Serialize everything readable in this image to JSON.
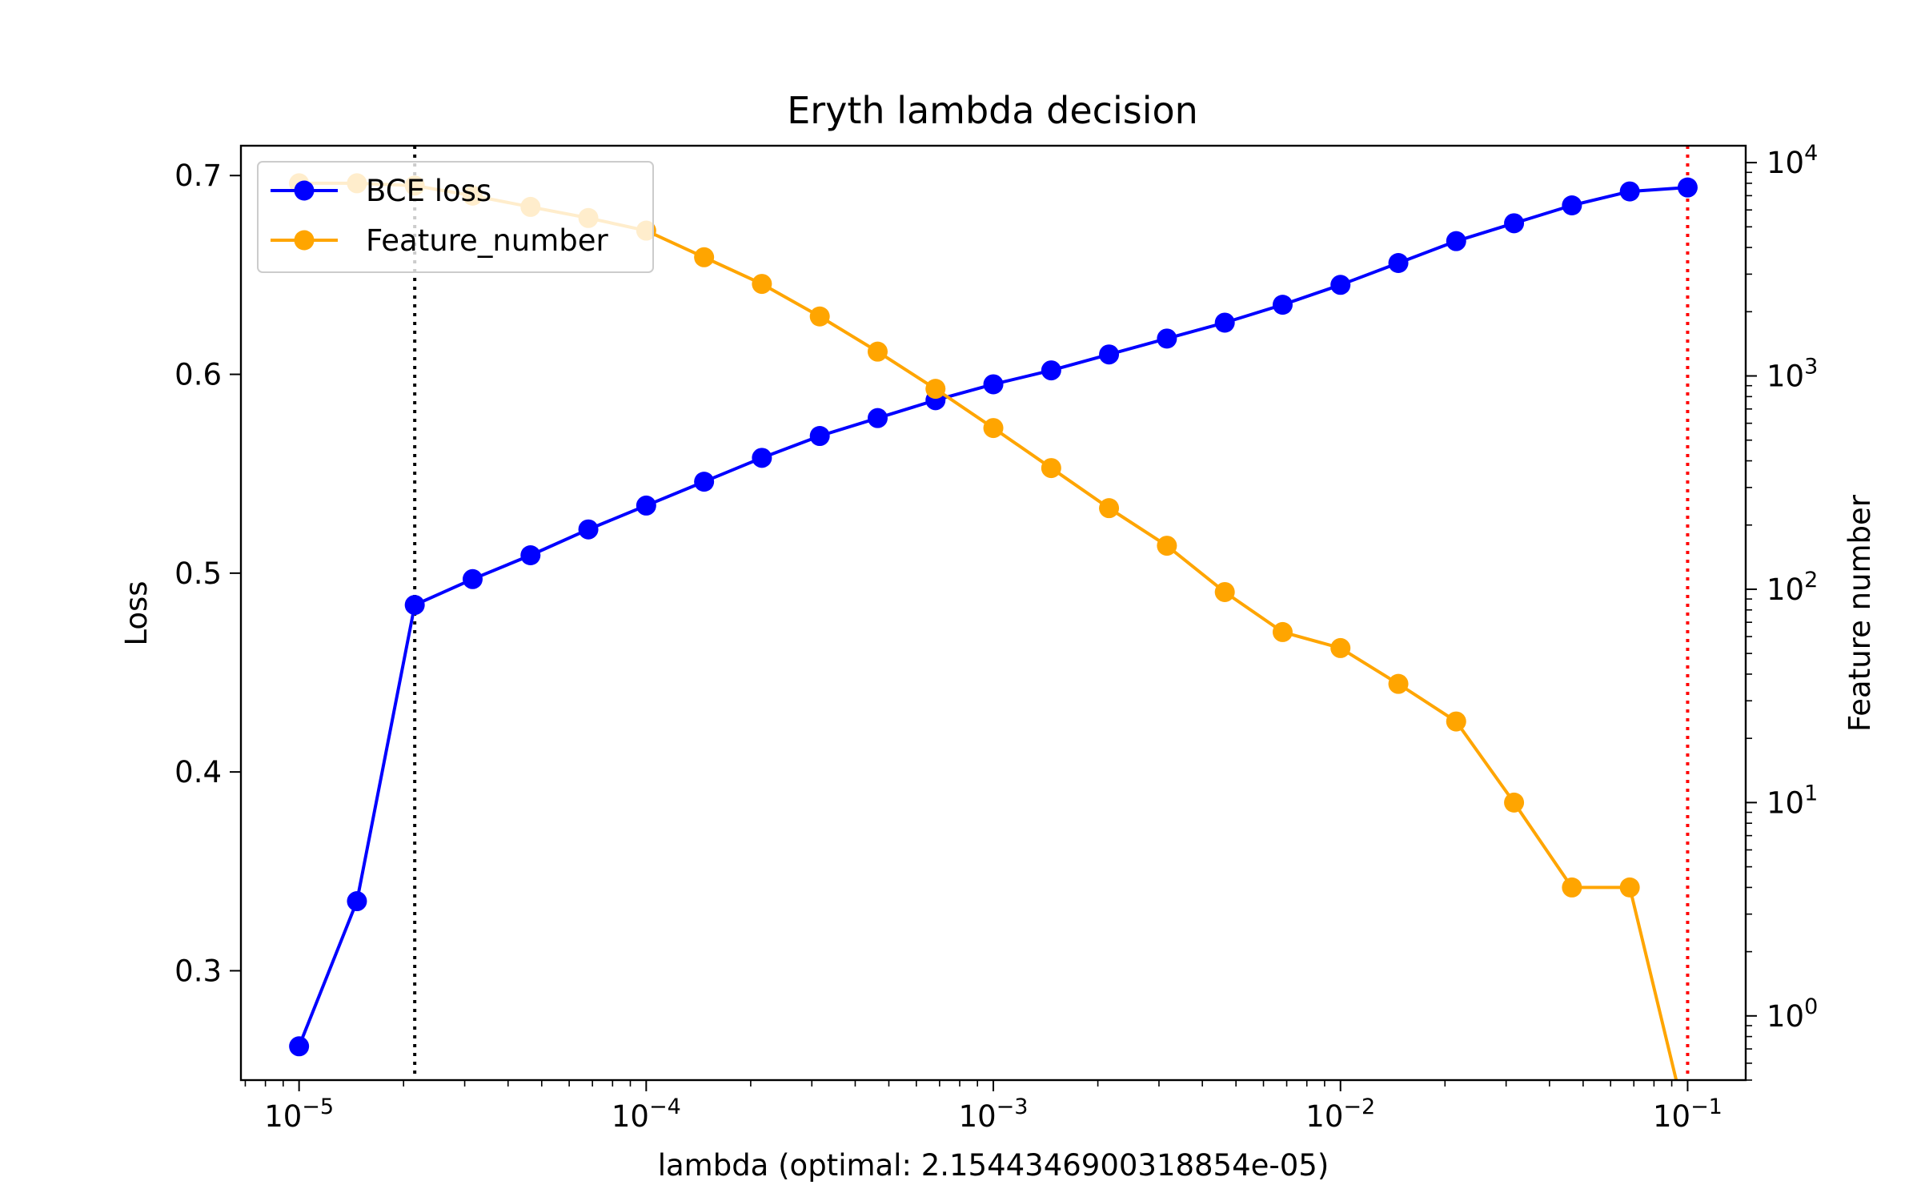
{
  "chart_data": {
    "type": "line",
    "title": "Eryth lambda decision",
    "xlabel": "lambda (optimal: 2.1544346900318854e-05)",
    "ylabel": "Loss",
    "y2label": "Feature number",
    "xscale": "log",
    "xlim": [
      6.8e-06,
      0.147
    ],
    "ylim": [
      0.245,
      0.715
    ],
    "y2scale": "log",
    "y2lim": [
      0.5,
      12000
    ],
    "x_ticks": [
      {
        "value": 1e-05,
        "base": "10",
        "exp": "−5"
      },
      {
        "value": 0.0001,
        "base": "10",
        "exp": "−4"
      },
      {
        "value": 0.001,
        "base": "10",
        "exp": "−3"
      },
      {
        "value": 0.01,
        "base": "10",
        "exp": "−2"
      },
      {
        "value": 0.1,
        "base": "10",
        "exp": "−1"
      }
    ],
    "y_ticks": [
      {
        "value": 0.3,
        "label": "0.3"
      },
      {
        "value": 0.4,
        "label": "0.4"
      },
      {
        "value": 0.5,
        "label": "0.5"
      },
      {
        "value": 0.6,
        "label": "0.6"
      },
      {
        "value": 0.7,
        "label": "0.7"
      }
    ],
    "y2_ticks": [
      {
        "value": 1,
        "base": "10",
        "exp": "0"
      },
      {
        "value": 10,
        "base": "10",
        "exp": "1"
      },
      {
        "value": 100,
        "base": "10",
        "exp": "2"
      },
      {
        "value": 1000,
        "base": "10",
        "exp": "3"
      },
      {
        "value": 10000,
        "base": "10",
        "exp": "4"
      }
    ],
    "x": [
      1e-05,
      1.468e-05,
      2.154e-05,
      3.162e-05,
      4.642e-05,
      6.813e-05,
      0.0001,
      0.0001468,
      0.0002154,
      0.0003162,
      0.0004642,
      0.0006813,
      0.001,
      0.001468,
      0.002154,
      0.003162,
      0.004642,
      0.006813,
      0.01,
      0.01468,
      0.02154,
      0.03162,
      0.04642,
      0.06813,
      0.1
    ],
    "series": [
      {
        "name": "BCE loss",
        "axis": "left",
        "color": "#0000ff",
        "values": [
          0.262,
          0.335,
          0.484,
          0.497,
          0.509,
          0.522,
          0.534,
          0.546,
          0.558,
          0.569,
          0.578,
          0.587,
          0.595,
          0.602,
          0.61,
          0.618,
          0.626,
          0.635,
          0.645,
          0.656,
          0.667,
          0.676,
          0.685,
          0.692,
          0.694
        ]
      },
      {
        "name": "Feature_number",
        "axis": "right",
        "color": "#ffa500",
        "values": [
          8000,
          8000,
          7800,
          7000,
          6200,
          5500,
          4800,
          3600,
          2700,
          1900,
          1300,
          870,
          570,
          370,
          240,
          160,
          97,
          63,
          53,
          36,
          24,
          10,
          4,
          4,
          0.3
        ]
      }
    ],
    "vlines": [
      {
        "x": 2.154e-05,
        "color": "#000000",
        "style": "dotted"
      },
      {
        "x": 0.1,
        "color": "#ff0000",
        "style": "dotted"
      }
    ],
    "legend": {
      "location": "top-left",
      "entries": [
        "BCE loss",
        "Feature_number"
      ]
    }
  }
}
